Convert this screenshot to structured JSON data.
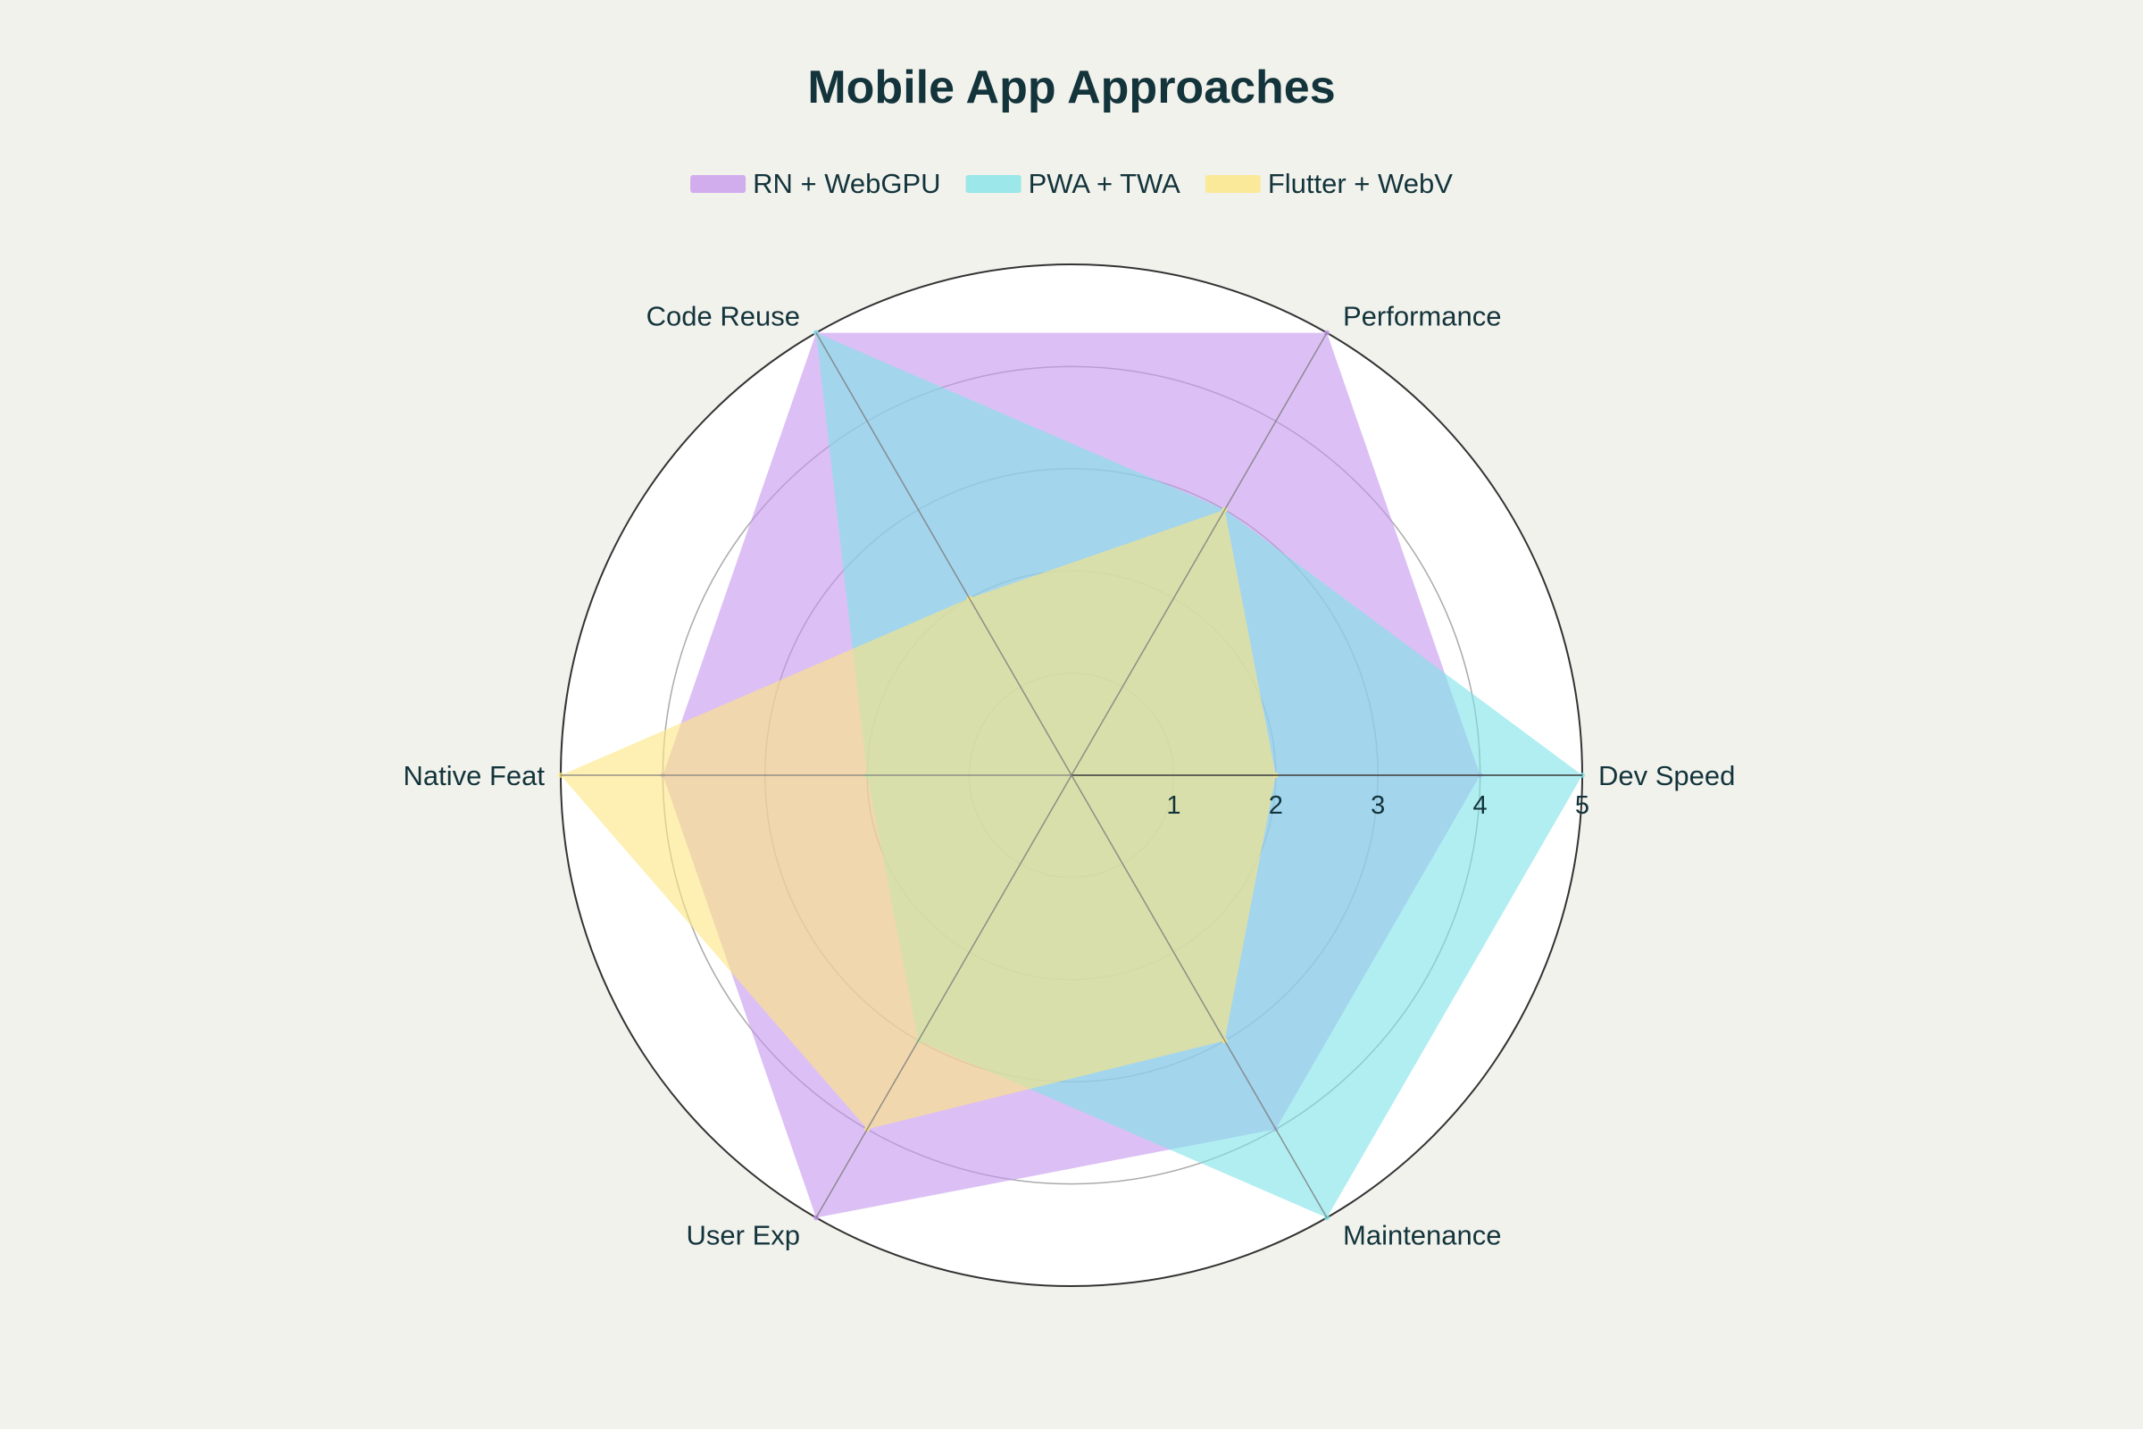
{
  "chart_data": {
    "type": "radar",
    "title": "Mobile App Approaches",
    "categories": [
      "Dev Speed",
      "Performance",
      "Code Reuse",
      "Native Feat",
      "User Exp",
      "Maintenance"
    ],
    "radial_range": [
      0,
      5
    ],
    "radial_ticks": [
      "1",
      "2",
      "3",
      "4",
      "5"
    ],
    "legend_position": "top-center",
    "series": [
      {
        "name": "RN + WebGPU",
        "color": "#c596ee",
        "values": [
          4,
          5,
          5,
          4,
          5,
          4
        ]
      },
      {
        "name": "PWA + TWA",
        "color": "#7de3e8",
        "values": [
          5,
          3,
          5,
          2,
          3,
          5
        ]
      },
      {
        "name": "Flutter + WebV",
        "color": "#fde67e",
        "values": [
          2,
          3,
          2,
          5,
          4,
          3
        ]
      }
    ]
  }
}
